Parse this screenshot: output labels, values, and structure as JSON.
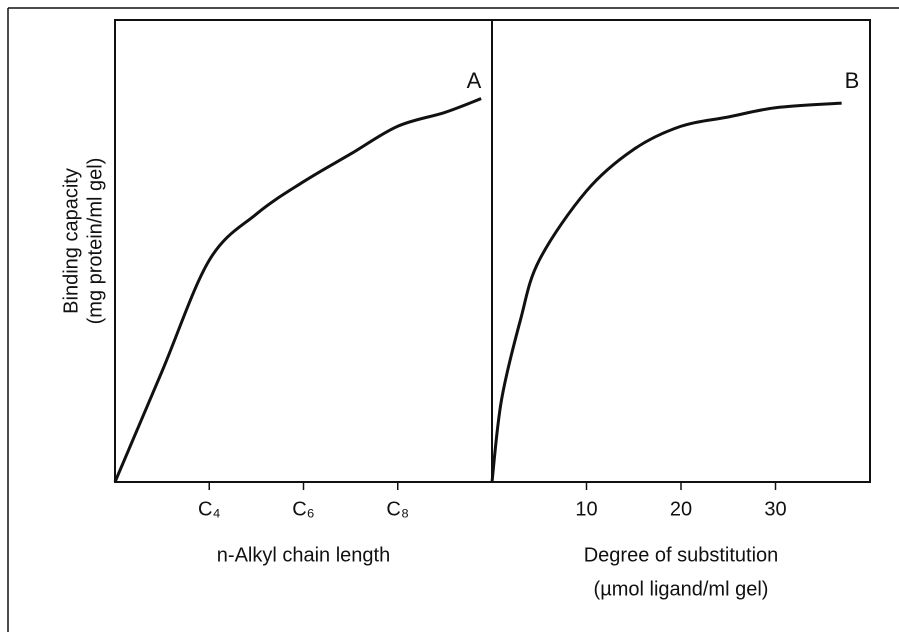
{
  "chart_data": [
    {
      "type": "line",
      "annotation": "A",
      "xlabel": "n-Alkyl chain length",
      "ylabel": [
        "Binding capacity",
        "(mg protein/ml gel)"
      ],
      "xlim": [
        2,
        10
      ],
      "ylim": [
        0,
        100
      ],
      "xticks": [
        {
          "value": 4,
          "label": "C₄"
        },
        {
          "value": 6,
          "label": "C₆"
        },
        {
          "value": 8,
          "label": "C₈"
        }
      ],
      "x": [
        2,
        3,
        4,
        5,
        6,
        7,
        8,
        9,
        9.77
      ],
      "series": [
        {
          "color": "#111111",
          "values": [
            0,
            24,
            48,
            58,
            65,
            71,
            77,
            80,
            83
          ]
        }
      ]
    },
    {
      "type": "line",
      "annotation": "B",
      "xlabel": [
        "Degree of substitution",
        "(µmol ligand/ml gel)"
      ],
      "xlim": [
        0,
        40
      ],
      "ylim": [
        0,
        100
      ],
      "xticks": [
        10,
        20,
        30
      ],
      "x": [
        0,
        1,
        3,
        5,
        10,
        15,
        20,
        25,
        30,
        37
      ],
      "series": [
        {
          "color": "#111111",
          "values": [
            0,
            17.7,
            35,
            48,
            63,
            72,
            77,
            79,
            81,
            82
          ]
        }
      ]
    }
  ]
}
